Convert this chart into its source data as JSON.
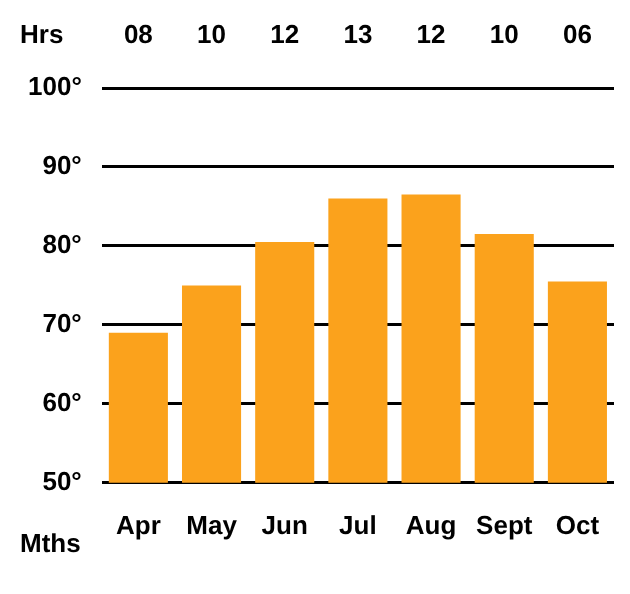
{
  "chart_data": {
    "type": "bar",
    "xlabel": "Mths",
    "categories": [
      "Apr",
      "May",
      "Jun",
      "Jul",
      "Aug",
      "Sept",
      "Oct"
    ],
    "series": [
      {
        "color": "#fba21c",
        "values": [
          69,
          75,
          80.5,
          86,
          86.5,
          81.5,
          75.5
        ]
      }
    ],
    "ylim": [
      50,
      100
    ],
    "yticks": [
      {
        "value": 50,
        "label": "50°"
      },
      {
        "value": 60,
        "label": "60°"
      },
      {
        "value": 70,
        "label": "70°"
      },
      {
        "value": 80,
        "label": "80°"
      },
      {
        "value": 90,
        "label": "90°"
      },
      {
        "value": 100,
        "label": "100°"
      }
    ],
    "grid": "y",
    "legend": false,
    "annotations": [
      "Hrs",
      "08",
      "10",
      "12",
      "13",
      "12",
      "10",
      "06"
    ]
  }
}
